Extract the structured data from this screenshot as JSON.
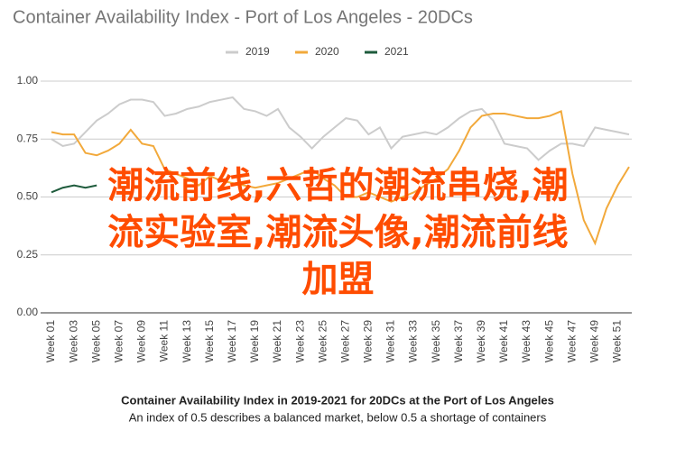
{
  "chart_data": {
    "type": "line",
    "title": "Container Availability Index - Port of Los Angeles - 20DCs",
    "caption": "Container Availability Index in 2019-2021 for 20DCs at the Port of Los Angeles",
    "subcaption": "An index of 0.5 describes a balanced market, below 0.5 a shortage of containers",
    "annotations": [
      "潮流前线,六哲的潮流串烧,潮",
      "流实验室,潮流头像,潮流前线",
      "加盟"
    ],
    "categories": [
      "Week 01",
      null,
      "Week 03",
      null,
      "Week 05",
      null,
      "Week 07",
      null,
      "Week 09",
      null,
      "Week 11",
      null,
      "Week 13",
      null,
      "Week 15",
      null,
      "Week 17",
      null,
      "Week 19",
      null,
      "Week 21",
      null,
      "Week 23",
      null,
      "Week 25",
      null,
      "Week 27",
      null,
      "Week 29",
      null,
      "Week 31",
      null,
      "Week 33",
      null,
      "Week 35",
      null,
      "Week 37",
      null,
      "Week 39",
      null,
      "Week 41",
      null,
      "Week 43",
      null,
      "Week 45",
      null,
      "Week 47",
      null,
      "Week 49",
      null,
      "Week 51",
      null
    ],
    "series": [
      {
        "name": "2019",
        "color": "#cccccc",
        "values": [
          0.75,
          0.72,
          0.73,
          0.78,
          0.83,
          0.86,
          0.9,
          0.92,
          0.92,
          0.91,
          0.85,
          0.86,
          0.88,
          0.89,
          0.91,
          0.92,
          0.93,
          0.88,
          0.87,
          0.85,
          0.88,
          0.8,
          0.76,
          0.71,
          0.76,
          0.8,
          0.84,
          0.83,
          0.77,
          0.8,
          0.71,
          0.76,
          0.77,
          0.78,
          0.77,
          0.8,
          0.84,
          0.87,
          0.88,
          0.83,
          0.73,
          0.72,
          0.71,
          0.66,
          0.7,
          0.73,
          0.73,
          0.72,
          0.8,
          0.79,
          0.78,
          0.77
        ]
      },
      {
        "name": "2020",
        "color": "#f2a93b",
        "values": [
          0.78,
          0.77,
          0.77,
          0.69,
          0.68,
          0.7,
          0.73,
          0.79,
          0.73,
          0.72,
          0.62,
          0.6,
          0.58,
          0.55,
          0.59,
          0.57,
          0.56,
          0.55,
          0.54,
          0.55,
          0.56,
          0.58,
          0.6,
          0.62,
          0.58,
          0.55,
          0.5,
          0.5,
          0.52,
          0.5,
          0.48,
          0.5,
          0.52,
          0.55,
          0.58,
          0.62,
          0.7,
          0.8,
          0.85,
          0.86,
          0.86,
          0.85,
          0.84,
          0.84,
          0.85,
          0.87,
          0.6,
          0.4,
          0.3,
          0.45,
          0.55,
          0.63
        ]
      },
      {
        "name": "2021",
        "color": "#1e5b3c",
        "values": [
          0.52,
          0.54,
          0.55,
          0.54,
          0.55,
          null,
          null,
          null,
          null,
          null,
          null,
          null,
          null,
          null,
          null,
          null,
          null,
          null,
          null,
          null,
          null,
          null,
          null,
          null,
          null,
          null,
          null,
          null,
          null,
          null,
          null,
          null,
          null,
          null,
          null,
          null,
          null,
          null,
          null,
          null,
          null,
          null,
          null,
          null,
          null,
          null,
          null,
          null,
          null,
          null,
          null,
          null
        ]
      }
    ],
    "ylim": [
      0,
      1
    ],
    "yticks": [
      {
        "value": 0,
        "label": "0.00"
      },
      {
        "value": 0.25,
        "label": "0.25"
      },
      {
        "value": 0.5,
        "label": "0.50"
      },
      {
        "value": 0.75,
        "label": "0.75"
      },
      {
        "value": 1,
        "label": "1.00"
      }
    ],
    "grid": true,
    "legend": "top"
  }
}
